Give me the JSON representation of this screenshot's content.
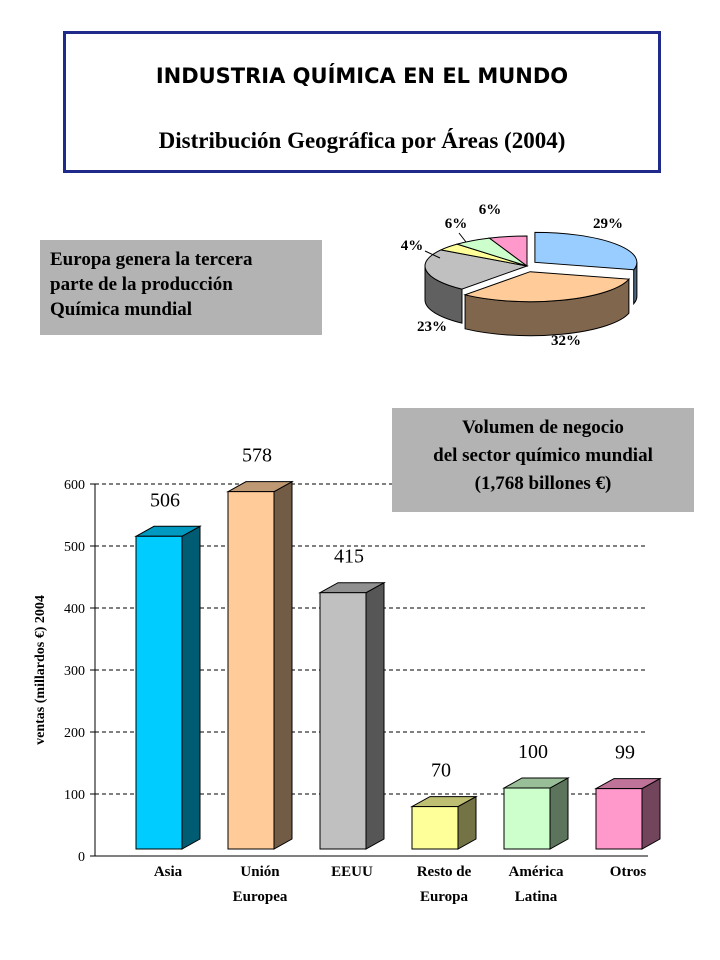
{
  "header": {
    "title": "INDUSTRIA QUÍMICA EN EL MUNDO",
    "subtitle": "Distribución Geográfica por Áreas (2004)"
  },
  "note": {
    "lines": [
      "Europa genera la tercera",
      "parte de la producción",
      "Química mundial"
    ]
  },
  "volume_box": {
    "lines": [
      "Volumen de negocio",
      "del sector químico mundial",
      "(1,768 billones €)"
    ]
  },
  "colors": {
    "asia": "#00ccff",
    "ue": "#ffcc99",
    "eeuu": "#c0c0c0",
    "resto_europa": "#ffff99",
    "america_latina": "#ccffcc",
    "otros": "#ff99cc",
    "pie_blue": "#99ccff"
  },
  "chart_data": [
    {
      "type": "pie",
      "title": "",
      "slices": [
        {
          "label": "29%",
          "value": 29,
          "color": "#99ccff"
        },
        {
          "label": "32%",
          "value": 32,
          "color": "#ffcc99"
        },
        {
          "label": "23%",
          "value": 23,
          "color": "#c0c0c0"
        },
        {
          "label": "4%",
          "value": 4,
          "color": "#ffff99"
        },
        {
          "label": "6%",
          "value": 6,
          "color": "#ccffcc"
        },
        {
          "label": "6%",
          "value": 6,
          "color": "#ff99cc"
        }
      ]
    },
    {
      "type": "bar",
      "categories": [
        [
          "Asia"
        ],
        [
          "Unión",
          "Europea"
        ],
        [
          "EEUU"
        ],
        [
          "Resto de",
          "Europa"
        ],
        [
          "América",
          "Latina"
        ],
        [
          "Otros"
        ]
      ],
      "values": [
        506,
        578,
        415,
        70,
        100,
        99
      ],
      "value_labels": [
        "506",
        "578",
        "415",
        "70",
        "100",
        "99"
      ],
      "colors": [
        "#00ccff",
        "#ffcc99",
        "#c0c0c0",
        "#ffff99",
        "#ccffcc",
        "#ff99cc"
      ],
      "ylabel": "ventas (millardos €) 2004",
      "xlabel": "",
      "ylim": [
        0,
        600
      ],
      "yticks": [
        0,
        100,
        200,
        300,
        400,
        500,
        600
      ],
      "grid": true
    }
  ]
}
